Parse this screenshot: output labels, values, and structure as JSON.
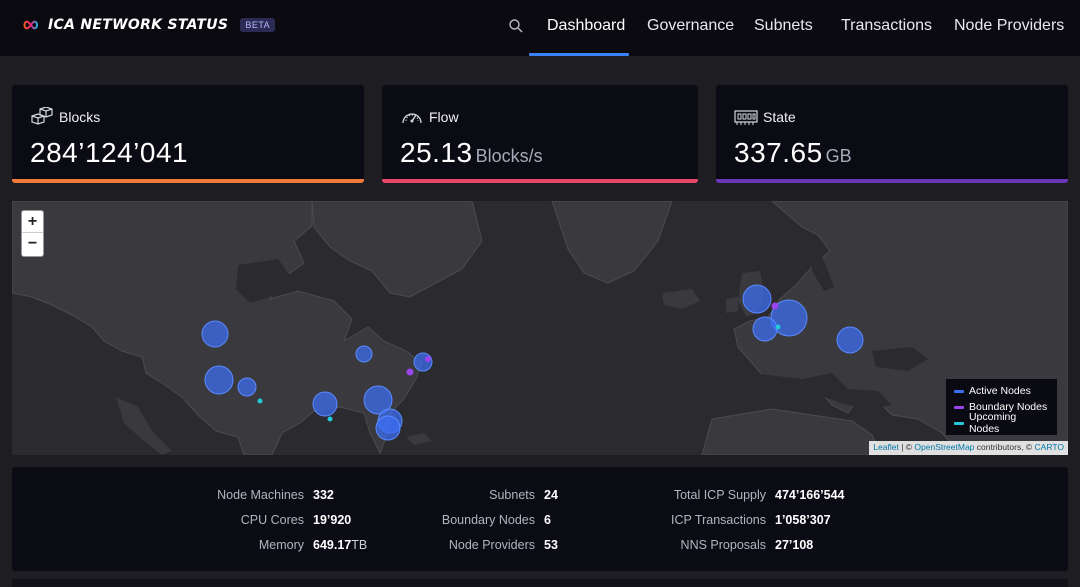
{
  "header": {
    "title": "ICA NETWORK STATUS",
    "badge": "BETA",
    "nav": [
      "Dashboard",
      "Governance",
      "Subnets",
      "Transactions",
      "Node Providers"
    ],
    "active_nav": "Dashboard"
  },
  "cards": [
    {
      "label": "Blocks",
      "value": "284’124’041",
      "unit": "",
      "icon": "cubes-icon",
      "accent": "#f07a3a"
    },
    {
      "label": "Flow",
      "value": "25.13",
      "unit": "Blocks/s",
      "icon": "speedometer-icon",
      "accent": "#e8466b"
    },
    {
      "label": "State",
      "value": "337.65",
      "unit": "GB",
      "icon": "memory-chip-icon",
      "accent": "#6b35b8"
    }
  ],
  "map": {
    "zoom_in": "+",
    "zoom_out": "−",
    "legend": [
      {
        "label": "Active Nodes",
        "color": "#3b6ff5"
      },
      {
        "label": "Boundary Nodes",
        "color": "#9b45f0"
      },
      {
        "label": "Upcoming Nodes",
        "color": "#22c8d8"
      }
    ],
    "attribution": {
      "leaflet": "Leaflet",
      "sep1": " | © ",
      "osm": "OpenStreetMap",
      "mid": " contributors, © ",
      "carto": "CARTO"
    }
  },
  "stats": {
    "node_machines_label": "Node Machines",
    "node_machines": "332",
    "cpu_cores_label": "CPU Cores",
    "cpu_cores": "19’920",
    "memory_label": "Memory",
    "memory": "649.17",
    "memory_unit": "TB",
    "subnets_label": "Subnets",
    "subnets": "24",
    "boundary_nodes_label": "Boundary Nodes",
    "boundary_nodes": "6",
    "node_providers_label": "Node Providers",
    "node_providers": "53",
    "total_icp_supply_label": "Total ICP Supply",
    "total_icp_supply": "474’166’544",
    "icp_transactions_label": "ICP Transactions",
    "icp_transactions": "1’058’307",
    "nns_proposals_label": "NNS Proposals",
    "nns_proposals": "27’108"
  }
}
